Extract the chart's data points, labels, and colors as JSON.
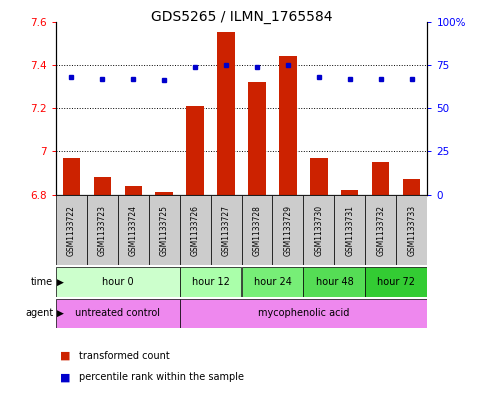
{
  "title": "GDS5265 / ILMN_1765584",
  "samples": [
    "GSM1133722",
    "GSM1133723",
    "GSM1133724",
    "GSM1133725",
    "GSM1133726",
    "GSM1133727",
    "GSM1133728",
    "GSM1133729",
    "GSM1133730",
    "GSM1133731",
    "GSM1133732",
    "GSM1133733"
  ],
  "bar_values": [
    6.97,
    6.88,
    6.84,
    6.81,
    7.21,
    7.55,
    7.32,
    7.44,
    6.97,
    6.82,
    6.95,
    6.87
  ],
  "dot_values": [
    68,
    67,
    67,
    66,
    74,
    75,
    74,
    75,
    68,
    67,
    67,
    67
  ],
  "bar_bottom": 6.8,
  "ylim_left": [
    6.8,
    7.6
  ],
  "ylim_right": [
    0,
    100
  ],
  "yticks_left": [
    6.8,
    7.0,
    7.2,
    7.4,
    7.6
  ],
  "ytick_labels_left": [
    "6.8",
    "7",
    "7.2",
    "7.4",
    "7.6"
  ],
  "yticks_right": [
    0,
    25,
    50,
    75,
    100
  ],
  "ytick_labels_right": [
    "0",
    "25",
    "50",
    "75",
    "100%"
  ],
  "bar_color": "#cc2200",
  "dot_color": "#0000cc",
  "time_groups": [
    {
      "label": "hour 0",
      "start": 0,
      "end": 4,
      "color": "#ccffcc"
    },
    {
      "label": "hour 12",
      "start": 4,
      "end": 6,
      "color": "#aaffaa"
    },
    {
      "label": "hour 24",
      "start": 6,
      "end": 8,
      "color": "#77ee77"
    },
    {
      "label": "hour 48",
      "start": 8,
      "end": 10,
      "color": "#55dd55"
    },
    {
      "label": "hour 72",
      "start": 10,
      "end": 12,
      "color": "#33cc33"
    }
  ],
  "agent_groups": [
    {
      "label": "untreated control",
      "start": 0,
      "end": 4,
      "color": "#ee88ee"
    },
    {
      "label": "mycophenolic acid",
      "start": 4,
      "end": 12,
      "color": "#ee88ee"
    }
  ],
  "legend_bar_label": "transformed count",
  "legend_dot_label": "percentile rank within the sample",
  "title_fontsize": 10,
  "tick_fontsize": 7.5,
  "sample_fontsize": 5.5,
  "row_fontsize": 7,
  "legend_fontsize": 7
}
